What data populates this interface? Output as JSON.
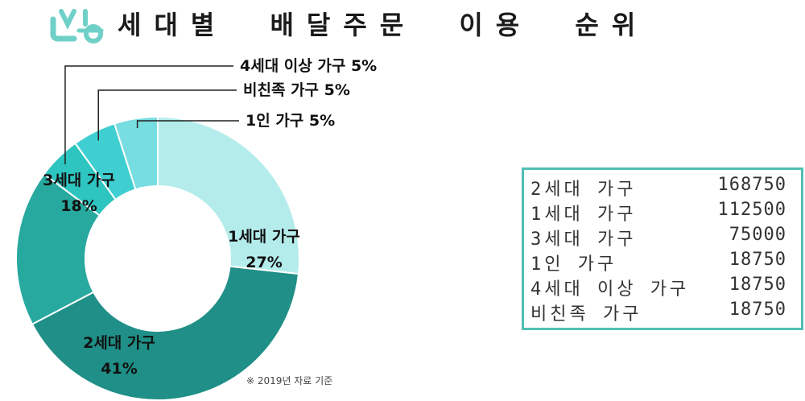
{
  "title": "세대별 배달주문 이용 순위",
  "note": "※ 2019년 자료 기준",
  "colors": {
    "accent": "#4fbfb3",
    "slices": [
      "#b4ecec",
      "#1f8f87",
      "#27a99f",
      "#2ec4bf",
      "#40cfd1",
      "#78dde0"
    ]
  },
  "icons": {
    "logo": "delivery-logo-icon"
  },
  "chart_data": {
    "type": "pie",
    "donut": true,
    "categories": [
      "1세대 가구",
      "2세대 가구",
      "3세대 가구",
      "4세대 이상 가구",
      "비친족 가구",
      "1인 가구"
    ],
    "values": [
      27,
      41,
      18,
      5,
      5,
      5
    ],
    "labels": [
      "1세대 가구 27%",
      "2세대 가구 41%",
      "3세대 가구 18%",
      "4세대 이상 가구 5%",
      "비친족 가구 5%",
      "1인 가구 5%"
    ],
    "table": [
      {
        "category": "2세대 가구",
        "value": "168750"
      },
      {
        "category": "1세대 가구",
        "value": "112500"
      },
      {
        "category": "3세대 가구",
        "value": "75000"
      },
      {
        "category": "1인 가구",
        "value": "18750"
      },
      {
        "category": "4세대 이상 가구",
        "value": "18750"
      },
      {
        "category": "비친족 가구",
        "value": "18750"
      }
    ]
  }
}
